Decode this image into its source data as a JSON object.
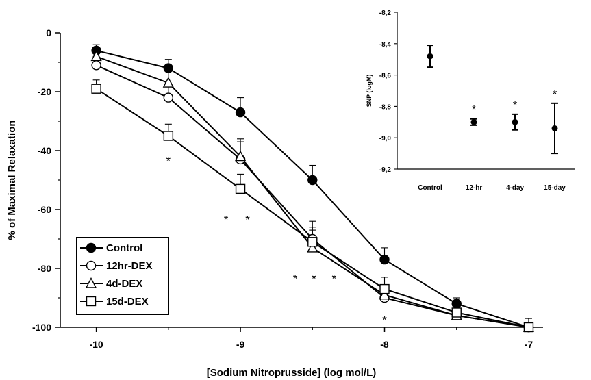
{
  "chart_data": [
    {
      "type": "line",
      "xlabel": "[Sodium Nitroprusside] (log mol/L)",
      "ylabel": "% of Maximal Relaxation",
      "xlim": [
        -10.25,
        -6.9
      ],
      "ylim": [
        -100,
        0
      ],
      "x_ticks": [
        -10,
        -9,
        -8,
        -7
      ],
      "x_tick_labels": [
        "-10",
        "-9",
        "-8",
        "-7"
      ],
      "y_ticks": [
        0,
        -20,
        -40,
        -60,
        -80,
        -100
      ],
      "y_tick_labels": [
        "0",
        "-20",
        "-40",
        "-60",
        "-80",
        "-100"
      ],
      "x": [
        -10,
        -9.5,
        -9,
        -8.5,
        -8,
        -7.5,
        -7
      ],
      "legend_position": "bottom-left",
      "series": [
        {
          "name": "Control",
          "marker": "filled-circle",
          "values": [
            -6,
            -12,
            -27,
            -50,
            -77,
            -92,
            -100
          ],
          "err_up": [
            2,
            3,
            5,
            5,
            4,
            2,
            0
          ]
        },
        {
          "name": "12hr-DEX",
          "marker": "open-circle",
          "values": [
            -11,
            -22,
            -43,
            -70,
            -90,
            -96,
            -100
          ],
          "err_up": [
            3,
            5,
            6,
            6,
            3,
            2,
            0
          ]
        },
        {
          "name": "4d-DEX",
          "marker": "open-triangle",
          "values": [
            -8,
            -17,
            -42,
            -73,
            -89,
            -96,
            -100
          ],
          "err_up": [
            3,
            4,
            6,
            6,
            3,
            2,
            0
          ]
        },
        {
          "name": "15d-DEX",
          "marker": "open-square",
          "values": [
            -19,
            -35,
            -53,
            -71,
            -87,
            -95,
            -100
          ],
          "err_up": [
            3,
            4,
            5,
            5,
            4,
            2,
            3
          ]
        }
      ],
      "annotations": [
        {
          "text": "*",
          "x": -9.5,
          "y": -42
        },
        {
          "text": "*",
          "x": -9.1,
          "y": -62
        },
        {
          "text": "*",
          "x": -8.95,
          "y": -62
        },
        {
          "text": "*",
          "x": -8.62,
          "y": -82
        },
        {
          "text": "*",
          "x": -8.49,
          "y": -82
        },
        {
          "text": "*",
          "x": -8.35,
          "y": -82
        },
        {
          "text": "*",
          "x": -8.0,
          "y": -96
        }
      ]
    },
    {
      "type": "scatter",
      "ylabel": "SNP (logM)",
      "categories": [
        "Control",
        "12-hr",
        "4-day",
        "15-day"
      ],
      "values": [
        -8.48,
        -8.9,
        -8.9,
        -8.94
      ],
      "error": [
        0.07,
        0.02,
        0.05,
        0.16
      ],
      "ylim": [
        -9.2,
        -8.2
      ],
      "y_ticks": [
        -8.2,
        -8.4,
        -8.6,
        -8.8,
        -9.0,
        -9.2
      ],
      "y_tick_labels": [
        "-8,2",
        "-8,4",
        "-8,6",
        "-8,8",
        "-9,0",
        "-9,2"
      ],
      "significance": [
        "",
        "*",
        "*",
        "*"
      ]
    }
  ]
}
